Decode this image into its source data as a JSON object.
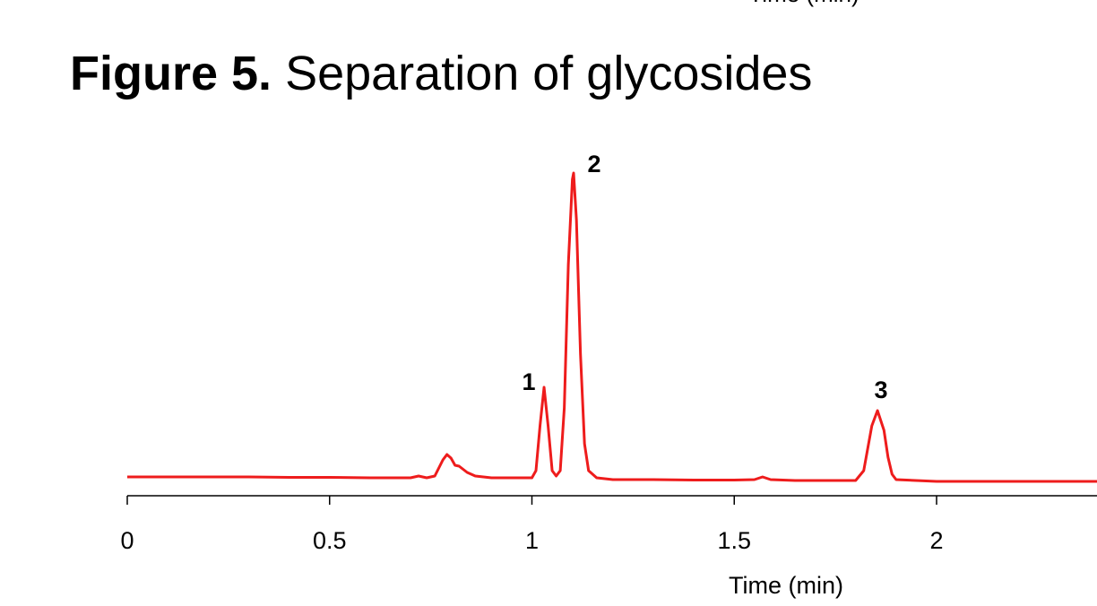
{
  "previous_axis_label": "Time (min)",
  "chart_data": {
    "type": "line",
    "title_prefix": "Figure 5.",
    "title": "Separation of glycosides",
    "xlabel": "Time (min)",
    "x": [
      0,
      0.1,
      0.2,
      0.3,
      0.4,
      0.5,
      0.6,
      0.7,
      0.72,
      0.74,
      0.76,
      0.78,
      0.79,
      0.8,
      0.81,
      0.82,
      0.84,
      0.86,
      0.9,
      0.95,
      1.0,
      1.01,
      1.02,
      1.03,
      1.04,
      1.05,
      1.06,
      1.07,
      1.08,
      1.09,
      1.1,
      1.103,
      1.11,
      1.12,
      1.13,
      1.14,
      1.16,
      1.2,
      1.3,
      1.4,
      1.5,
      1.55,
      1.57,
      1.59,
      1.65,
      1.7,
      1.8,
      1.82,
      1.84,
      1.854,
      1.87,
      1.88,
      1.89,
      1.9,
      2.0,
      2.1,
      2.2,
      2.3,
      2.4
    ],
    "values": [
      13,
      13,
      13,
      13,
      12.5,
      12.5,
      12,
      12,
      14,
      12,
      14,
      32,
      38,
      34,
      26,
      25,
      18,
      14,
      12,
      12,
      12,
      20,
      70,
      113,
      70,
      20,
      14,
      20,
      90,
      250,
      345,
      352,
      300,
      150,
      50,
      20,
      12,
      10,
      10,
      9.5,
      9.5,
      10,
      13,
      10,
      9,
      9,
      9,
      20,
      70,
      87,
      65,
      35,
      16,
      10,
      8,
      8,
      8,
      8,
      8
    ],
    "color": "#ee1c1c",
    "xlim": [
      0,
      2.4
    ],
    "xticks": [
      0,
      0.5,
      1,
      1.5,
      2
    ],
    "ylim": [
      0,
      400
    ],
    "annotations": [
      "1",
      "2",
      "3"
    ]
  }
}
